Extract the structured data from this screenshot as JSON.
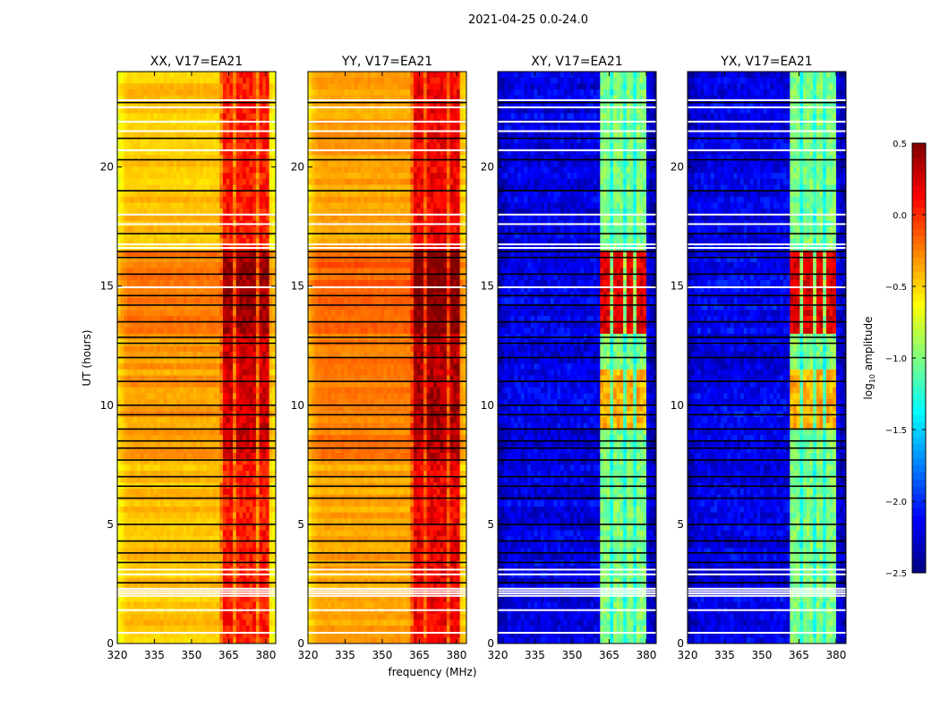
{
  "chart_data": {
    "type": "heatmap",
    "suptitle": "2021-04-25 0.0-24.0",
    "xlabel": "frequency (MHz)",
    "ylabel": "UT (hours)",
    "xlim": [
      320,
      384
    ],
    "ylim": [
      0,
      24
    ],
    "xticks": [
      "320",
      "335",
      "350",
      "365",
      "380"
    ],
    "xtick_values": [
      320,
      335,
      350,
      365,
      380
    ],
    "yticks": [
      "0",
      "5",
      "10",
      "15",
      "20"
    ],
    "ytick_values": [
      0,
      5,
      10,
      15,
      20
    ],
    "colorbar": {
      "label_main": "log",
      "label_sub": "10",
      "label_rest": " amplitude",
      "range": [
        -2.5,
        0.5
      ],
      "ticks": [
        "0.5",
        "0.0",
        "−0.5",
        "−1.0",
        "−1.5",
        "−2.0",
        "−2.5"
      ],
      "tick_values": [
        0.5,
        0.0,
        -0.5,
        -1.0,
        -1.5,
        -2.0,
        -2.5
      ],
      "colormap": "jet"
    },
    "panels": [
      {
        "title": "XX, V17=EA21",
        "base": -0.45,
        "band": 0.05,
        "high_hours": [
          [
            7.7,
            13.0,
            0.2
          ],
          [
            13.0,
            16.5,
            0.35
          ]
        ],
        "band_mhz": [
          362,
          381
        ]
      },
      {
        "title": "YY, V17=EA21",
        "base": -0.35,
        "band": 0.15,
        "high_hours": [
          [
            7.7,
            13.0,
            0.2
          ],
          [
            13.0,
            16.5,
            0.35
          ]
        ],
        "band_mhz": [
          362,
          381
        ]
      },
      {
        "title": "XY, V17=EA21",
        "base": -2.2,
        "band": -1.0,
        "high_hours": [
          [
            9.0,
            11.5,
            0.6
          ],
          [
            13.0,
            16.5,
            1.2
          ]
        ],
        "band_mhz": [
          361,
          380
        ]
      },
      {
        "title": "YX, V17=EA21",
        "base": -2.2,
        "band": -1.0,
        "high_hours": [
          [
            9.0,
            11.5,
            0.6
          ],
          [
            13.0,
            16.5,
            1.2
          ]
        ],
        "band_mhz": [
          361,
          380
        ]
      }
    ],
    "flagged_hours_white": [
      0.45,
      1.4,
      2.0,
      2.1,
      2.2,
      2.3,
      2.9,
      3.1,
      14.95,
      16.6,
      16.75,
      17.6,
      18.0,
      20.7,
      21.5,
      21.9,
      22.5,
      22.8
    ],
    "flagged_hours_black": [
      2.55,
      3.4,
      3.8,
      4.3,
      5.0,
      6.1,
      6.6,
      7.0,
      7.7,
      8.2,
      8.5,
      9.0,
      9.6,
      10.0,
      11.0,
      12.0,
      12.6,
      12.85,
      13.5,
      14.2,
      14.6,
      15.5,
      16.2,
      16.45,
      17.2,
      19.0,
      20.3,
      21.2,
      22.7
    ]
  }
}
